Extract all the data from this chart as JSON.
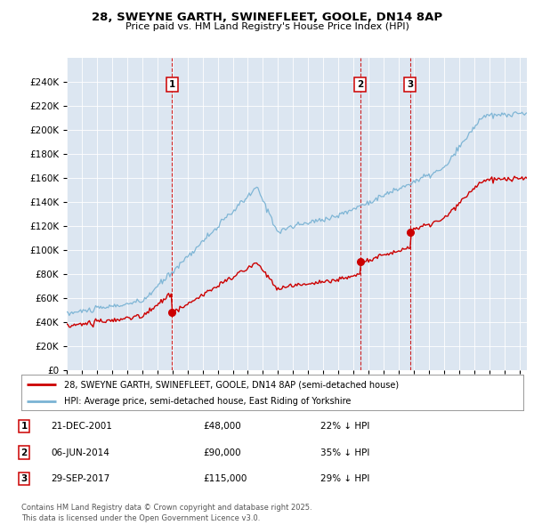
{
  "title_line1": "28, SWEYNE GARTH, SWINEFLEET, GOOLE, DN14 8AP",
  "title_line2": "Price paid vs. HM Land Registry's House Price Index (HPI)",
  "plot_bg_color": "#dce6f1",
  "hpi_color": "#7ab3d4",
  "price_color": "#cc0000",
  "ylim": [
    0,
    260000
  ],
  "yticks": [
    0,
    20000,
    40000,
    60000,
    80000,
    100000,
    120000,
    140000,
    160000,
    180000,
    200000,
    220000,
    240000
  ],
  "xlim_start": 1995.0,
  "xlim_end": 2025.5,
  "sales": [
    {
      "date_num": 2001.97,
      "price": 48000,
      "label": "1"
    },
    {
      "date_num": 2014.44,
      "price": 90000,
      "label": "2"
    },
    {
      "date_num": 2017.75,
      "price": 115000,
      "label": "3"
    }
  ],
  "legend_entries": [
    "28, SWEYNE GARTH, SWINEFLEET, GOOLE, DN14 8AP (semi-detached house)",
    "HPI: Average price, semi-detached house, East Riding of Yorkshire"
  ],
  "table_rows": [
    {
      "num": "1",
      "date": "21-DEC-2001",
      "price": "£48,000",
      "note": "22% ↓ HPI"
    },
    {
      "num": "2",
      "date": "06-JUN-2014",
      "price": "£90,000",
      "note": "35% ↓ HPI"
    },
    {
      "num": "3",
      "date": "29-SEP-2017",
      "price": "£115,000",
      "note": "29% ↓ HPI"
    }
  ],
  "footer": "Contains HM Land Registry data © Crown copyright and database right 2025.\nThis data is licensed under the Open Government Licence v3.0."
}
